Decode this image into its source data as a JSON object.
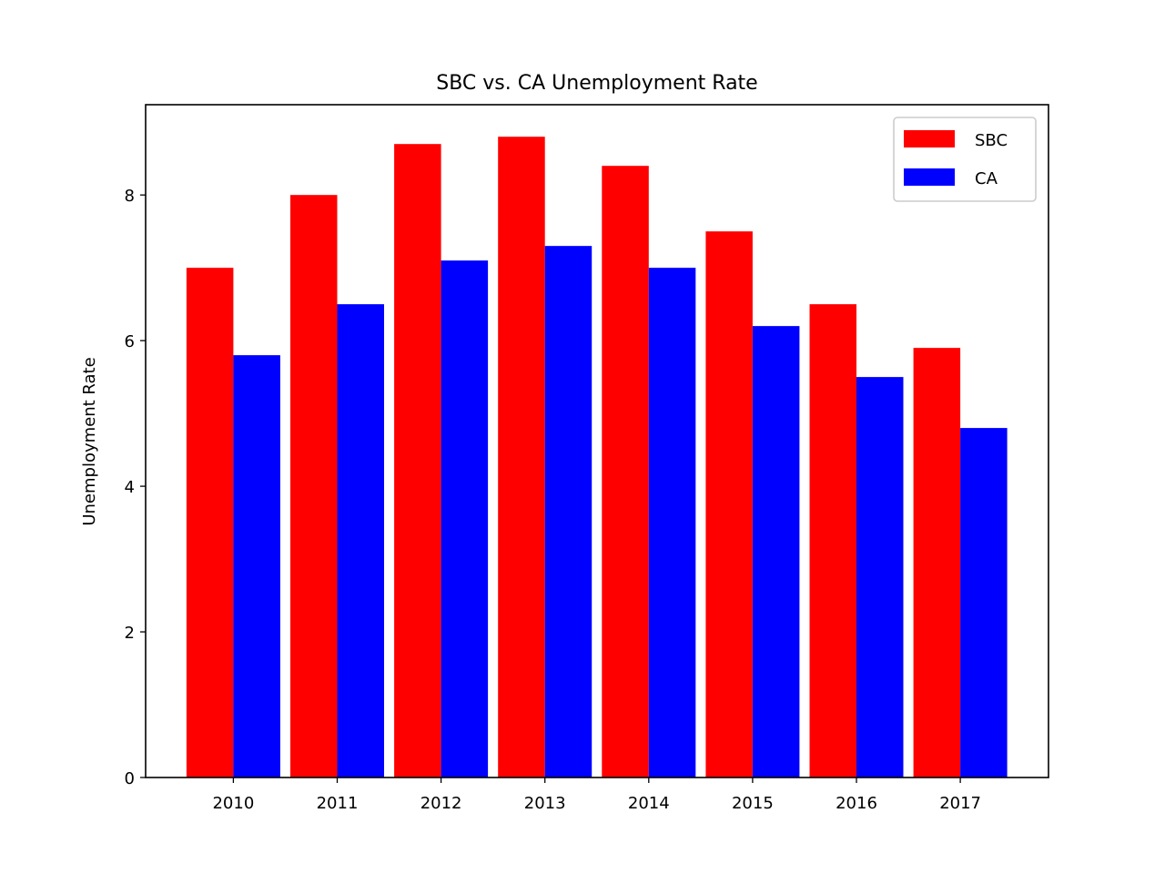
{
  "chart_data": {
    "type": "bar",
    "title": "SBC vs. CA Unemployment Rate",
    "xlabel": "",
    "ylabel": "Unemployment Rate",
    "categories": [
      "2010",
      "2011",
      "2012",
      "2013",
      "2014",
      "2015",
      "2016",
      "2017"
    ],
    "series": [
      {
        "name": "SBC",
        "color": "#ff0000",
        "values": [
          7.0,
          8.0,
          8.7,
          8.8,
          8.4,
          7.5,
          6.5,
          5.9
        ]
      },
      {
        "name": "CA",
        "color": "#0000ff",
        "values": [
          5.8,
          6.5,
          7.1,
          7.3,
          7.0,
          6.2,
          5.5,
          4.8
        ]
      }
    ],
    "ylim": [
      0,
      9.24
    ],
    "yticks": [
      "0",
      "2",
      "4",
      "6",
      "8"
    ],
    "grid": false,
    "legend_position": "top-right"
  }
}
